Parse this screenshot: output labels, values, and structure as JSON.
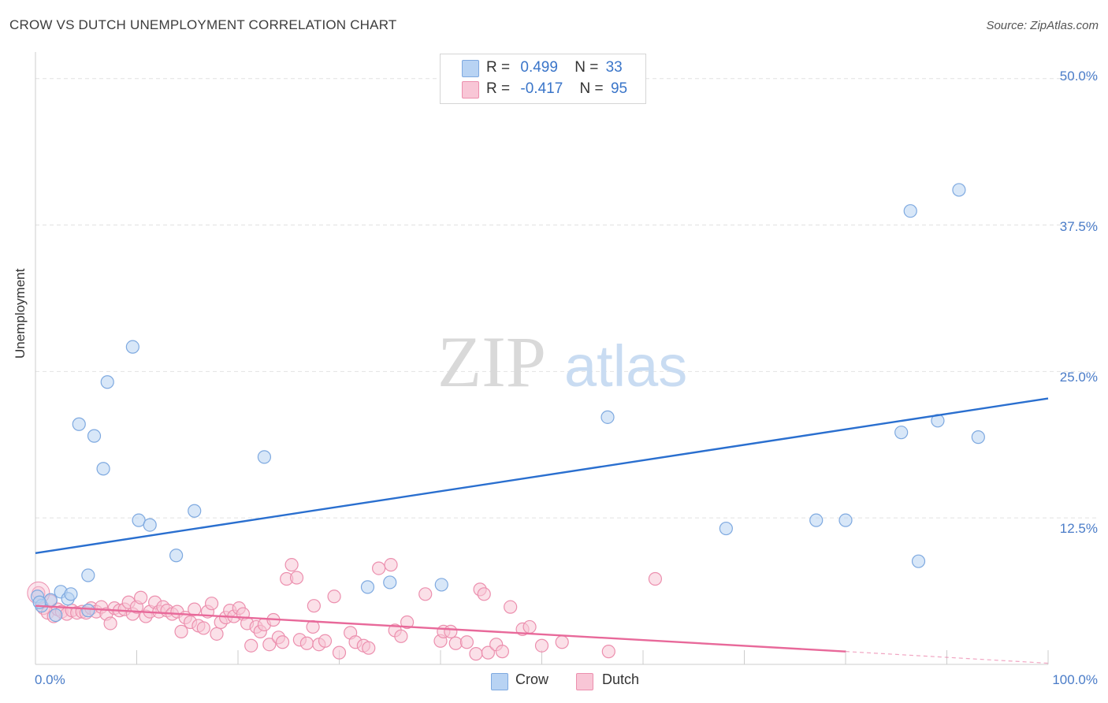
{
  "header": {
    "title": "CROW VS DUTCH UNEMPLOYMENT CORRELATION CHART",
    "source": "Source: ZipAtlas.com"
  },
  "watermark": {
    "text_zip": "ZIP",
    "text_atlas": "atlas"
  },
  "colors": {
    "crow_fill": "#b8d3f3",
    "crow_stroke": "#7ea9e0",
    "crow_line": "#2a6fcf",
    "dutch_fill": "#f8c6d6",
    "dutch_stroke": "#ec8fae",
    "dutch_line": "#e8699a",
    "grid": "#e2e2e2",
    "axis": "#cccccc",
    "tick_text": "#4a7cc8"
  },
  "legend_top": {
    "rows": [
      {
        "series": "Crow",
        "r_label": "R =",
        "r_value": "0.499",
        "n_label": "N =",
        "n_value": "33"
      },
      {
        "series": "Dutch",
        "r_label": "R =",
        "r_value": "-0.417",
        "n_label": "N =",
        "n_value": "95"
      }
    ]
  },
  "legend_bottom": {
    "items": [
      "Crow",
      "Dutch"
    ]
  },
  "chart_data": {
    "type": "scatter",
    "title": "CROW VS DUTCH UNEMPLOYMENT CORRELATION CHART",
    "xlabel": "",
    "ylabel": "Unemployment",
    "xlim": [
      0,
      100
    ],
    "ylim": [
      0,
      52
    ],
    "x_tick_labels": [
      "0.0%",
      "100.0%"
    ],
    "y_ticks": [
      12.5,
      25.0,
      37.5,
      50.0
    ],
    "y_tick_labels": [
      "12.5%",
      "25.0%",
      "37.5%",
      "50.0%"
    ],
    "grid": true,
    "legend_position": "top-center",
    "series": [
      {
        "name": "Crow",
        "r": 0.499,
        "n": 33,
        "trend": {
          "x": [
            0,
            100
          ],
          "y": [
            9.5,
            22.7
          ]
        },
        "points": [
          {
            "x": 0.2,
            "y": 5.8
          },
          {
            "x": 0.6,
            "y": 5.0
          },
          {
            "x": 1.5,
            "y": 5.5
          },
          {
            "x": 2.0,
            "y": 4.2
          },
          {
            "x": 2.5,
            "y": 6.2
          },
          {
            "x": 3.2,
            "y": 5.6
          },
          {
            "x": 3.5,
            "y": 6.0
          },
          {
            "x": 5.2,
            "y": 4.6
          },
          {
            "x": 5.2,
            "y": 7.6
          },
          {
            "x": 4.3,
            "y": 20.5
          },
          {
            "x": 5.8,
            "y": 19.5
          },
          {
            "x": 6.7,
            "y": 16.7
          },
          {
            "x": 7.1,
            "y": 24.1
          },
          {
            "x": 9.6,
            "y": 27.1
          },
          {
            "x": 10.2,
            "y": 12.3
          },
          {
            "x": 11.3,
            "y": 11.9
          },
          {
            "x": 13.9,
            "y": 9.3
          },
          {
            "x": 15.7,
            "y": 13.1
          },
          {
            "x": 22.6,
            "y": 17.7
          },
          {
            "x": 32.8,
            "y": 6.6
          },
          {
            "x": 35.0,
            "y": 7.0
          },
          {
            "x": 40.1,
            "y": 6.8
          },
          {
            "x": 56.5,
            "y": 21.1
          },
          {
            "x": 68.2,
            "y": 11.6
          },
          {
            "x": 77.1,
            "y": 12.3
          },
          {
            "x": 80.0,
            "y": 12.3
          },
          {
            "x": 85.5,
            "y": 19.8
          },
          {
            "x": 86.4,
            "y": 38.7
          },
          {
            "x": 87.2,
            "y": 8.8
          },
          {
            "x": 89.1,
            "y": 20.8
          },
          {
            "x": 91.2,
            "y": 40.5
          },
          {
            "x": 93.1,
            "y": 19.4
          },
          {
            "x": 0.4,
            "y": 5.3
          }
        ]
      },
      {
        "name": "Dutch",
        "r": -0.417,
        "n": 95,
        "trend": {
          "x": [
            0,
            80
          ],
          "y": [
            5.0,
            1.1
          ]
        },
        "trend_dashed": {
          "x": [
            80,
            100
          ],
          "y": [
            1.1,
            0.1
          ]
        },
        "points": [
          {
            "x": 0.3,
            "y": 6.1
          },
          {
            "x": 0.8,
            "y": 4.8
          },
          {
            "x": 1.2,
            "y": 4.4
          },
          {
            "x": 1.5,
            "y": 5.4
          },
          {
            "x": 1.8,
            "y": 4.1
          },
          {
            "x": 2.2,
            "y": 4.7
          },
          {
            "x": 2.6,
            "y": 4.5
          },
          {
            "x": 3.1,
            "y": 4.3
          },
          {
            "x": 3.6,
            "y": 4.6
          },
          {
            "x": 4.1,
            "y": 4.4
          },
          {
            "x": 4.6,
            "y": 4.5
          },
          {
            "x": 5.0,
            "y": 4.4
          },
          {
            "x": 5.5,
            "y": 4.8
          },
          {
            "x": 6.0,
            "y": 4.5
          },
          {
            "x": 6.5,
            "y": 4.9
          },
          {
            "x": 7.0,
            "y": 4.3
          },
          {
            "x": 7.4,
            "y": 3.5
          },
          {
            "x": 7.8,
            "y": 4.8
          },
          {
            "x": 8.3,
            "y": 4.6
          },
          {
            "x": 8.8,
            "y": 4.7
          },
          {
            "x": 9.2,
            "y": 5.3
          },
          {
            "x": 9.6,
            "y": 4.3
          },
          {
            "x": 10.0,
            "y": 4.9
          },
          {
            "x": 10.4,
            "y": 5.7
          },
          {
            "x": 10.9,
            "y": 4.1
          },
          {
            "x": 11.3,
            "y": 4.5
          },
          {
            "x": 11.8,
            "y": 5.3
          },
          {
            "x": 12.2,
            "y": 4.5
          },
          {
            "x": 12.6,
            "y": 4.9
          },
          {
            "x": 13.0,
            "y": 4.6
          },
          {
            "x": 13.5,
            "y": 4.3
          },
          {
            "x": 14.0,
            "y": 4.5
          },
          {
            "x": 14.4,
            "y": 2.8
          },
          {
            "x": 14.8,
            "y": 4.0
          },
          {
            "x": 15.3,
            "y": 3.6
          },
          {
            "x": 15.7,
            "y": 4.7
          },
          {
            "x": 16.1,
            "y": 3.3
          },
          {
            "x": 16.6,
            "y": 3.1
          },
          {
            "x": 17.0,
            "y": 4.5
          },
          {
            "x": 17.4,
            "y": 5.2
          },
          {
            "x": 17.9,
            "y": 2.6
          },
          {
            "x": 18.3,
            "y": 3.6
          },
          {
            "x": 18.8,
            "y": 4.0
          },
          {
            "x": 19.2,
            "y": 4.6
          },
          {
            "x": 19.6,
            "y": 4.1
          },
          {
            "x": 20.1,
            "y": 4.8
          },
          {
            "x": 20.5,
            "y": 4.3
          },
          {
            "x": 20.9,
            "y": 3.5
          },
          {
            "x": 21.3,
            "y": 1.6
          },
          {
            "x": 21.8,
            "y": 3.2
          },
          {
            "x": 22.2,
            "y": 2.8
          },
          {
            "x": 22.6,
            "y": 3.4
          },
          {
            "x": 23.1,
            "y": 1.7
          },
          {
            "x": 23.5,
            "y": 3.8
          },
          {
            "x": 24.0,
            "y": 2.3
          },
          {
            "x": 24.4,
            "y": 1.9
          },
          {
            "x": 24.8,
            "y": 7.3
          },
          {
            "x": 25.3,
            "y": 8.5
          },
          {
            "x": 25.8,
            "y": 7.4
          },
          {
            "x": 26.1,
            "y": 2.1
          },
          {
            "x": 26.8,
            "y": 1.8
          },
          {
            "x": 27.4,
            "y": 3.2
          },
          {
            "x": 27.5,
            "y": 5.0
          },
          {
            "x": 28.0,
            "y": 1.7
          },
          {
            "x": 28.6,
            "y": 2.0
          },
          {
            "x": 29.5,
            "y": 5.8
          },
          {
            "x": 30.0,
            "y": 1.0
          },
          {
            "x": 31.1,
            "y": 2.7
          },
          {
            "x": 31.6,
            "y": 1.9
          },
          {
            "x": 32.4,
            "y": 1.6
          },
          {
            "x": 32.9,
            "y": 1.4
          },
          {
            "x": 33.9,
            "y": 8.2
          },
          {
            "x": 35.1,
            "y": 8.5
          },
          {
            "x": 35.5,
            "y": 2.9
          },
          {
            "x": 36.1,
            "y": 2.4
          },
          {
            "x": 36.7,
            "y": 3.6
          },
          {
            "x": 38.5,
            "y": 6.0
          },
          {
            "x": 40.0,
            "y": 2.0
          },
          {
            "x": 40.3,
            "y": 2.8
          },
          {
            "x": 41.0,
            "y": 2.8
          },
          {
            "x": 41.5,
            "y": 1.8
          },
          {
            "x": 42.6,
            "y": 1.9
          },
          {
            "x": 43.5,
            "y": 0.9
          },
          {
            "x": 43.9,
            "y": 6.4
          },
          {
            "x": 44.3,
            "y": 6.0
          },
          {
            "x": 44.7,
            "y": 1.0
          },
          {
            "x": 45.5,
            "y": 1.7
          },
          {
            "x": 46.1,
            "y": 1.1
          },
          {
            "x": 46.9,
            "y": 4.9
          },
          {
            "x": 48.1,
            "y": 3.0
          },
          {
            "x": 48.8,
            "y": 3.2
          },
          {
            "x": 50.0,
            "y": 1.6
          },
          {
            "x": 52.0,
            "y": 1.9
          },
          {
            "x": 56.6,
            "y": 1.1
          },
          {
            "x": 61.2,
            "y": 7.3
          }
        ]
      }
    ]
  }
}
